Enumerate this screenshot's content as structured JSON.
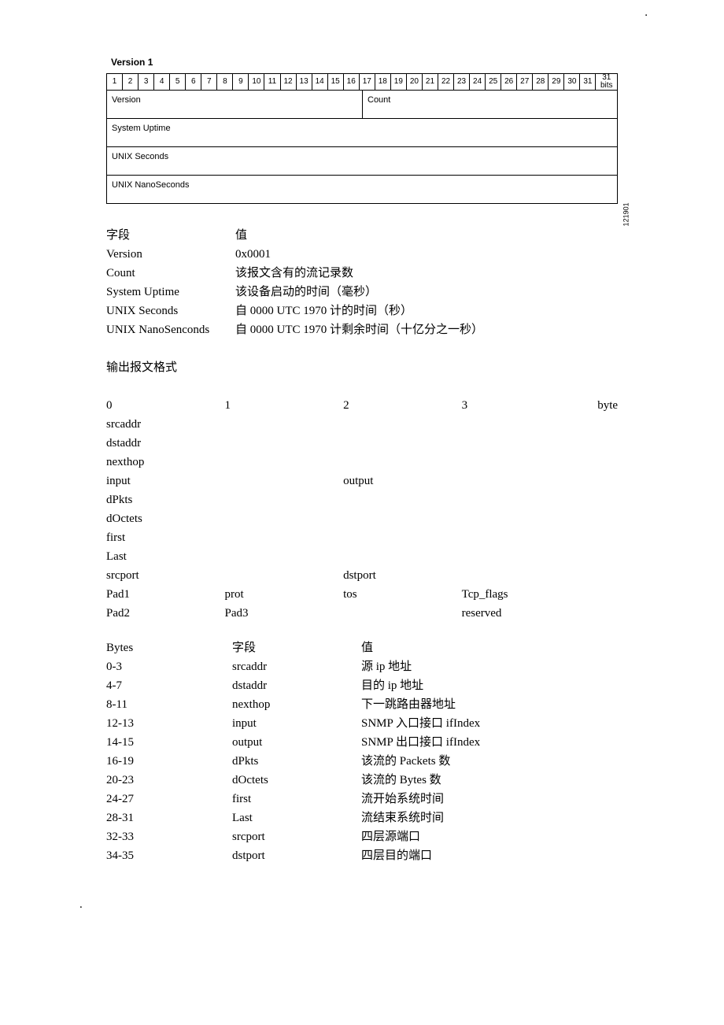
{
  "dots": {
    "tr": ".",
    "bl": "."
  },
  "diagram": {
    "title": "Version 1",
    "bits_label_last": "31 bits",
    "side_label": "121901",
    "fields": {
      "version": "Version",
      "count": "Count",
      "uptime": "System Uptime",
      "seconds": "UNIX Seconds",
      "nano": "UNIX NanoSeconds"
    }
  },
  "header_fields": {
    "col_field": "字段",
    "col_value": "值",
    "rows": [
      {
        "k": "Version",
        "v": "0x0001"
      },
      {
        "k": "Count",
        "v": "该报文含有的流记录数"
      },
      {
        "k": "System Uptime",
        "v": "该设备启动的时间（毫秒）"
      },
      {
        "k": "UNIX Seconds",
        "v": "自 0000 UTC 1970 计的时间（秒）"
      },
      {
        "k": "UNIX NanoSenconds",
        "v": "自 0000 UTC 1970 计剩余时间（十亿分之一秒）"
      }
    ]
  },
  "output_section": {
    "title": "输出报文格式",
    "byte_header": {
      "c0": "0",
      "c1": "1",
      "c2": "2",
      "c3": "3",
      "unit": "byte"
    },
    "rows": [
      {
        "c0": "srcaddr",
        "c1": "",
        "c2": "",
        "c3": ""
      },
      {
        "c0": "dstaddr",
        "c1": "",
        "c2": "",
        "c3": ""
      },
      {
        "c0": "nexthop",
        "c1": "",
        "c2": "",
        "c3": ""
      },
      {
        "c0": "input",
        "c1": "",
        "c2": "output",
        "c3": ""
      },
      {
        "c0": "dPkts",
        "c1": "",
        "c2": "",
        "c3": ""
      },
      {
        "c0": "dOctets",
        "c1": "",
        "c2": "",
        "c3": ""
      },
      {
        "c0": "first",
        "c1": "",
        "c2": "",
        "c3": ""
      },
      {
        "c0": "Last",
        "c1": "",
        "c2": "",
        "c3": ""
      },
      {
        "c0": "srcport",
        "c1": "",
        "c2": "dstport",
        "c3": ""
      },
      {
        "c0": "Pad1",
        "c1": "prot",
        "c2": "tos",
        "c3": "Tcp_flags"
      },
      {
        "c0": "Pad2",
        "c1": "Pad3",
        "c2": "",
        "c3": "reserved"
      }
    ]
  },
  "field_table": {
    "col_bytes": "Bytes",
    "col_field": "字段",
    "col_value": "值",
    "rows": [
      {
        "b": "0-3",
        "f": "srcaddr",
        "v": "源 ip 地址"
      },
      {
        "b": "4-7",
        "f": "dstaddr",
        "v": "目的 ip 地址"
      },
      {
        "b": "8-11",
        "f": "nexthop",
        "v": "下一跳路由器地址"
      },
      {
        "b": "12-13",
        "f": "input",
        "v": "SNMP 入口接口 ifIndex"
      },
      {
        "b": "14-15",
        "f": "output",
        "v": "SNMP 出口接口 ifIndex"
      },
      {
        "b": "16-19",
        "f": "dPkts",
        "v": "该流的 Packets 数"
      },
      {
        "b": "20-23",
        "f": "dOctets",
        "v": "该流的 Bytes 数"
      },
      {
        "b": "24-27",
        "f": "first",
        "v": "流开始系统时间"
      },
      {
        "b": "28-31",
        "f": "Last",
        "v": "流结束系统时间"
      },
      {
        "b": "32-33",
        "f": "srcport",
        "v": "四层源端口"
      },
      {
        "b": "34-35",
        "f": "dstport",
        "v": "四层目的端口"
      }
    ]
  }
}
